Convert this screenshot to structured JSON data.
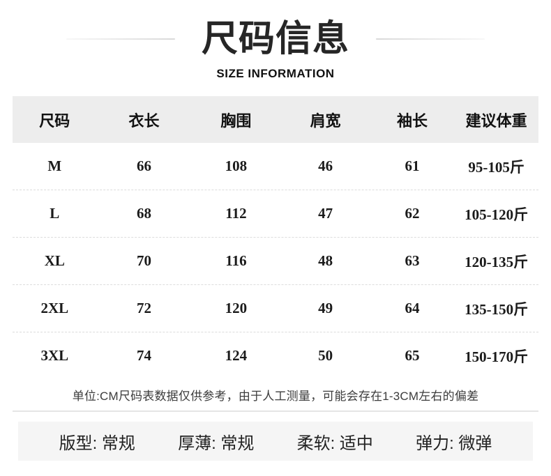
{
  "page": {
    "title": "尺码信息",
    "subtitle": "SIZE INFORMATION"
  },
  "size_table": {
    "headers": [
      "尺码",
      "衣长",
      "胸围",
      "肩宽",
      "袖长",
      "建议体重"
    ],
    "rows": [
      [
        "M",
        "66",
        "108",
        "46",
        "61",
        "95-105斤"
      ],
      [
        "L",
        "68",
        "112",
        "47",
        "62",
        "105-120斤"
      ],
      [
        "XL",
        "70",
        "116",
        "48",
        "63",
        "120-135斤"
      ],
      [
        "2XL",
        "72",
        "120",
        "49",
        "64",
        "135-150斤"
      ],
      [
        "3XL",
        "74",
        "124",
        "50",
        "65",
        "150-170斤"
      ]
    ]
  },
  "note": "单位:CM尺码表数据仅供参考，由于人工测量，可能会存在1-3CM左右的偏差",
  "attributes": [
    {
      "text": "版型: 常规"
    },
    {
      "text": "厚薄: 常规"
    },
    {
      "text": "柔软: 适中"
    },
    {
      "text": "弹力: 微弹"
    }
  ],
  "colors": {
    "header_background": "#ededed",
    "attribute_bar_background": "#f5f5f5",
    "separator": "#dcdcdc",
    "title_text": "#262626",
    "body_text": "#1a1a1a"
  }
}
